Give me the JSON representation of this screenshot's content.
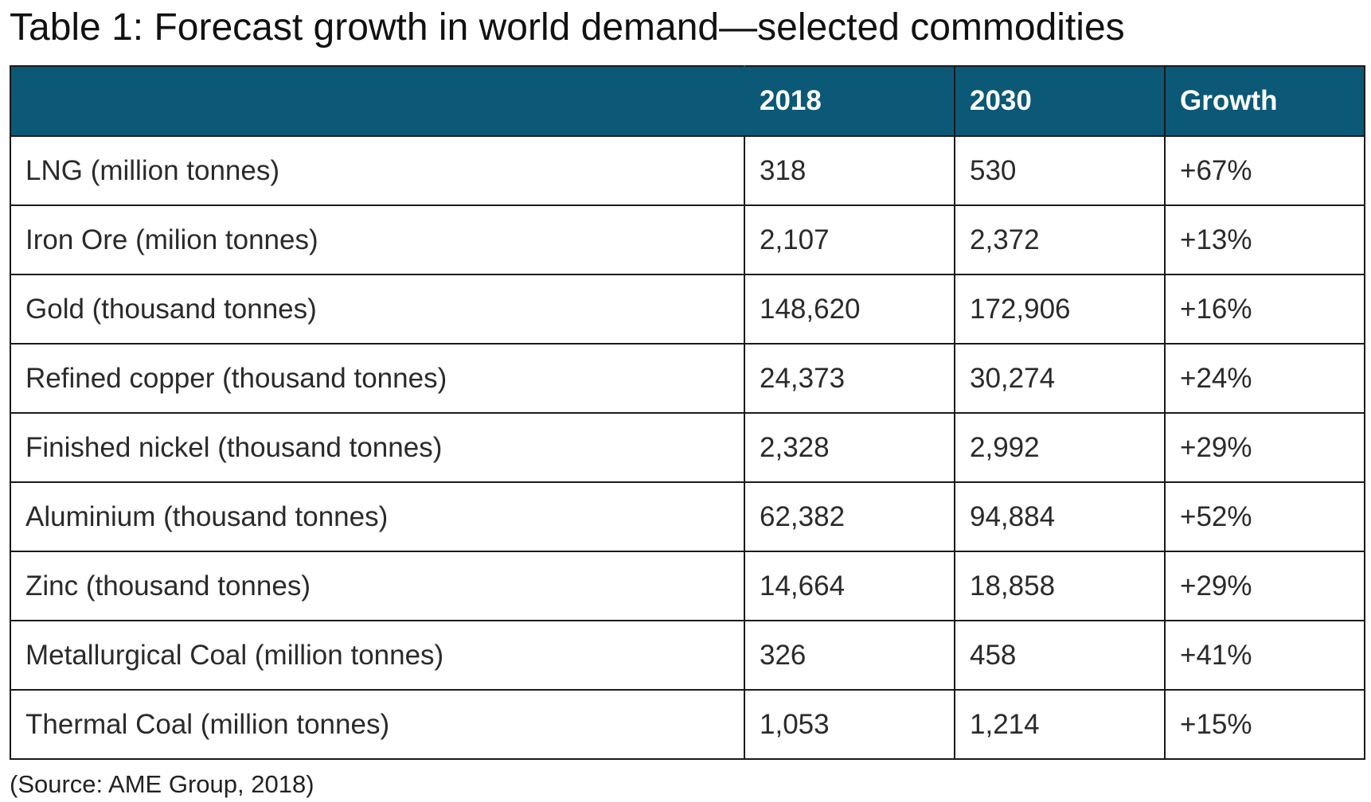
{
  "chart_data": {
    "type": "table",
    "title": "Table 1: Forecast growth in world demand—selected commodities",
    "columns": [
      "",
      "2018",
      "2030",
      "Growth"
    ],
    "rows": [
      [
        "LNG (million tonnes)",
        "318",
        "530",
        "+67%"
      ],
      [
        "Iron Ore (milion tonnes)",
        "2,107",
        "2,372",
        "+13%"
      ],
      [
        "Gold (thousand tonnes)",
        "148,620",
        "172,906",
        "+16%"
      ],
      [
        "Refined copper (thousand tonnes)",
        "24,373",
        "30,274",
        "+24%"
      ],
      [
        "Finished nickel (thousand tonnes)",
        "2,328",
        "2,992",
        "+29%"
      ],
      [
        "Aluminium (thousand tonnes)",
        "62,382",
        "94,884",
        "+52%"
      ],
      [
        "Zinc (thousand tonnes)",
        "14,664",
        "18,858",
        "+29%"
      ],
      [
        "Metallurgical Coal (million tonnes)",
        "326",
        "458",
        "+41%"
      ],
      [
        "Thermal Coal (million tonnes)",
        "1,053",
        "1,214",
        "+15%"
      ]
    ],
    "source": "(Source: AME Group, 2018)",
    "header_color": "#0b5877"
  }
}
